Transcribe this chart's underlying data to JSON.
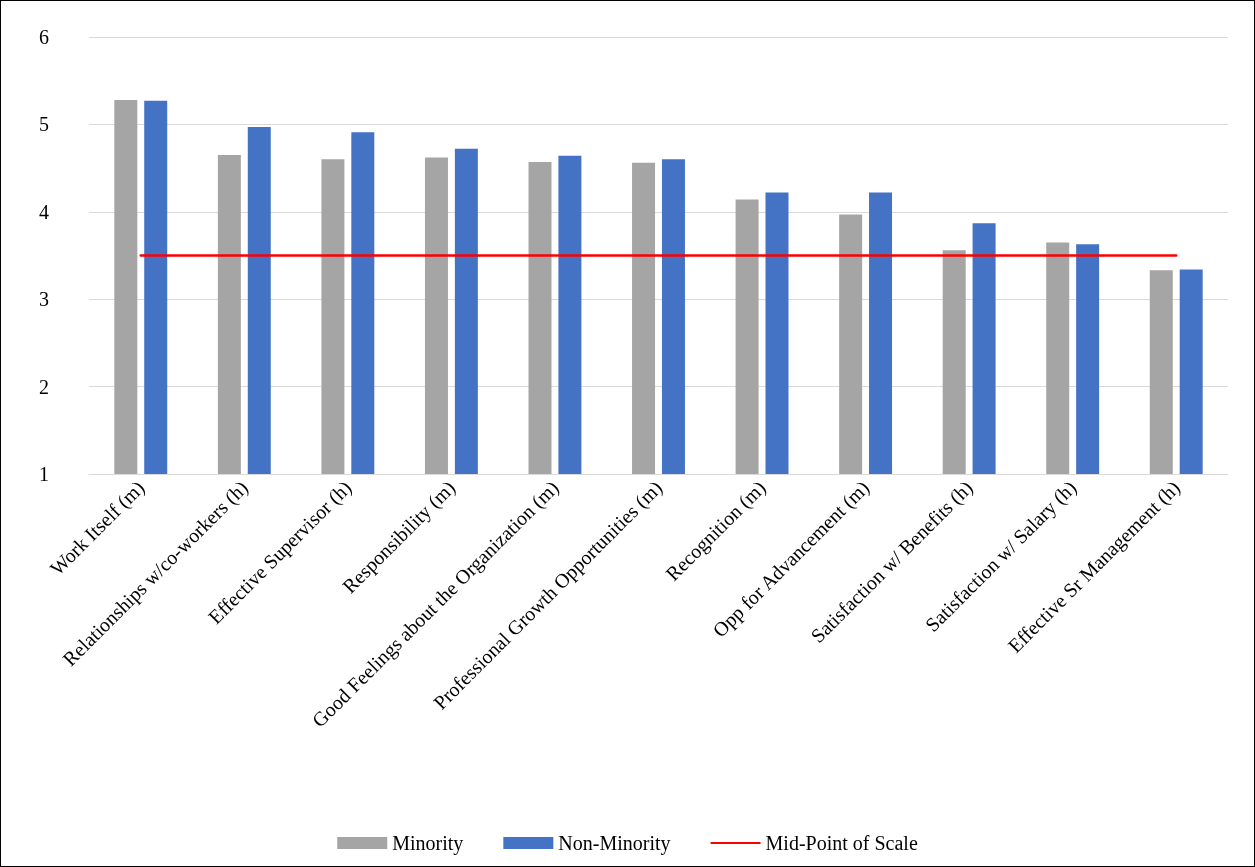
{
  "chart_data": {
    "type": "bar",
    "categories": [
      "Work Itself (m)",
      "Relationships w/co-workers (h)",
      "Effective Supervisor (h)",
      "Responsibility (m)",
      "Good Feelings about the Organization (m)",
      "Professional Growth Opportunities (m)",
      "Recognition (m)",
      "Opp for Advancement (m)",
      "Satisfaction w/ Benefits (h)",
      "Satisfaction w/ Salary (h)",
      "Effective Sr Management (h)"
    ],
    "series": [
      {
        "name": "Minority",
        "color": "#a5a5a5",
        "values": [
          5.28,
          4.65,
          4.6,
          4.62,
          4.57,
          4.56,
          4.14,
          3.97,
          3.56,
          3.65,
          3.33
        ]
      },
      {
        "name": "Non-Minority",
        "color": "#4472c4",
        "values": [
          5.27,
          4.97,
          4.91,
          4.72,
          4.64,
          4.6,
          4.22,
          4.22,
          3.87,
          3.63,
          3.34
        ]
      },
      {
        "name": "Mid-Point of Scale",
        "type": "line",
        "color": "#ff0000",
        "marker": "none",
        "values": [
          3.5,
          3.5,
          3.5,
          3.5,
          3.5,
          3.5,
          3.5,
          3.5,
          3.5,
          3.5,
          3.5
        ]
      }
    ],
    "ylim": [
      1,
      6
    ],
    "yticks": [
      1,
      2,
      3,
      4,
      5,
      6
    ],
    "grid": "y",
    "legend": "bottom"
  }
}
